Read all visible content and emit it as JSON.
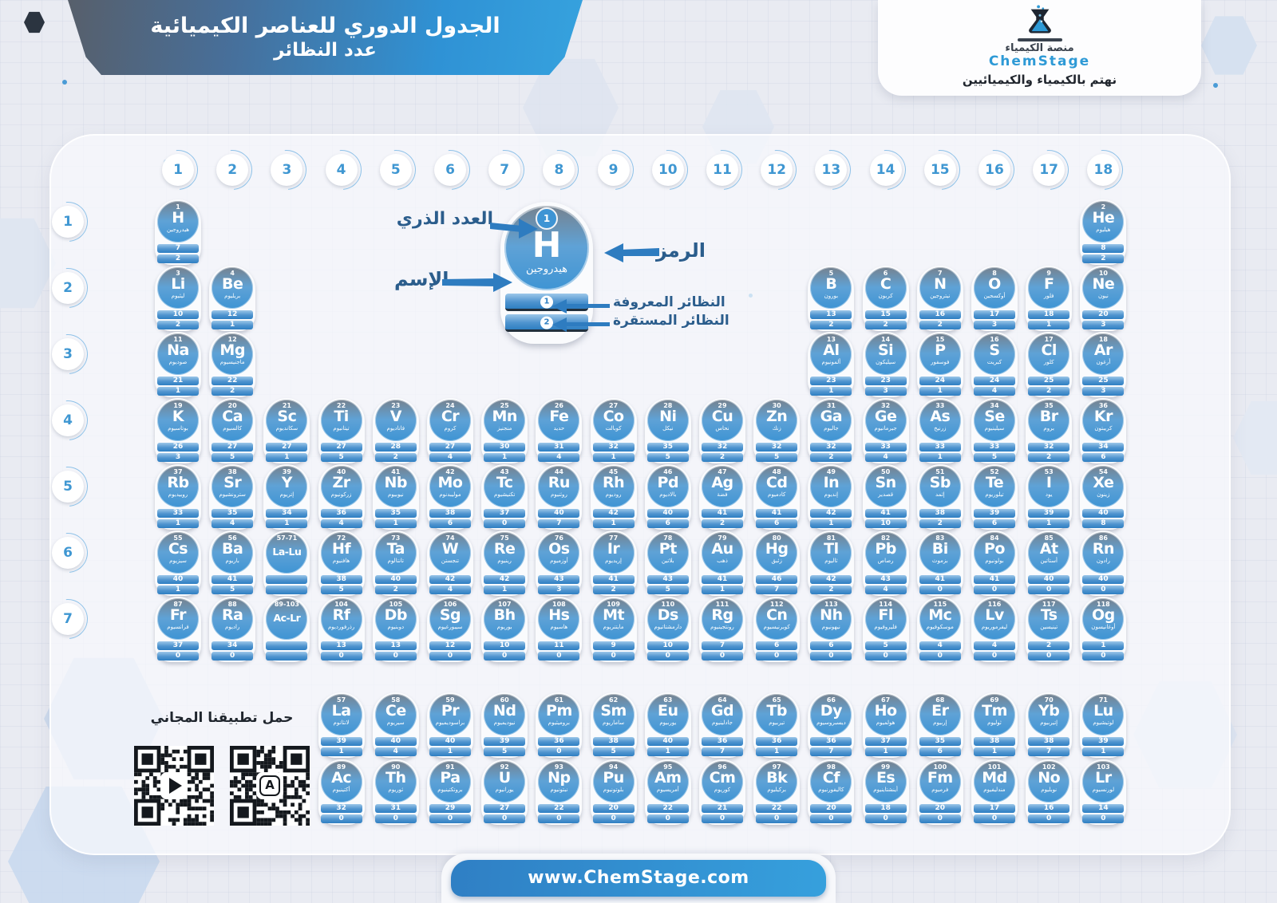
{
  "title": {
    "line1": "الجدول الدوري للعناصر الكيميائية",
    "line2": "عدد النظائر"
  },
  "brand": {
    "platform_ar": "منصة الكيمياء",
    "name": "ChemStage",
    "tagline": "نهتم بالكيمياء والكيميائيين"
  },
  "legend": {
    "atomic_number_label": "العدد الذري",
    "symbol_label": "الرمز",
    "name_label": "الإسم",
    "known_isotopes_label": "النظائر المعروفة",
    "stable_isotopes_label": "النظائر المستقرة",
    "example": {
      "number": "1",
      "symbol": "H",
      "name": "هيدروجين",
      "known_marker": "1",
      "stable_marker": "2"
    }
  },
  "app": {
    "download_label": "حمل تطبيقنا المجاني",
    "qr_codes": [
      "google-play-qr",
      "app-store-qr"
    ]
  },
  "footer": {
    "url": "www.ChemStage.com"
  },
  "colors": {
    "accent_blue": "#2e9ad6",
    "cell_blue": "#3e94d4",
    "band_blue": "#2e7fc2",
    "label_navy": "#2b5d8c",
    "banner_dark": "#575f6b",
    "background": "#e9ebf2"
  },
  "periodic": {
    "groups": [
      1,
      2,
      3,
      4,
      5,
      6,
      7,
      8,
      9,
      10,
      11,
      12,
      13,
      14,
      15,
      16,
      17,
      18
    ],
    "periods": [
      1,
      2,
      3,
      4,
      5,
      6,
      7
    ],
    "element_fields": [
      "group",
      "period",
      "number",
      "symbol",
      "name_ar",
      "known_isotopes",
      "stable_isotopes"
    ],
    "elements": [
      [
        1,
        1,
        "1",
        "H",
        "هيدروجين",
        7,
        2
      ],
      [
        18,
        1,
        "2",
        "He",
        "هيليوم",
        8,
        2
      ],
      [
        1,
        2,
        "3",
        "Li",
        "ليثيوم",
        10,
        2
      ],
      [
        2,
        2,
        "4",
        "Be",
        "بريليوم",
        12,
        1
      ],
      [
        13,
        2,
        "5",
        "B",
        "بورون",
        13,
        2
      ],
      [
        14,
        2,
        "6",
        "C",
        "كربون",
        15,
        2
      ],
      [
        15,
        2,
        "7",
        "N",
        "نيتروجين",
        16,
        2
      ],
      [
        16,
        2,
        "8",
        "O",
        "أوكسجين",
        17,
        3
      ],
      [
        17,
        2,
        "9",
        "F",
        "فلور",
        18,
        1
      ],
      [
        18,
        2,
        "10",
        "Ne",
        "نيون",
        20,
        3
      ],
      [
        1,
        3,
        "11",
        "Na",
        "صوديوم",
        21,
        1
      ],
      [
        2,
        3,
        "12",
        "Mg",
        "ماجنيسيوم",
        22,
        2
      ],
      [
        13,
        3,
        "13",
        "Al",
        "ألمونيوم",
        23,
        1
      ],
      [
        14,
        3,
        "14",
        "Si",
        "سيليكون",
        23,
        3
      ],
      [
        15,
        3,
        "15",
        "P",
        "فوسفور",
        24,
        1
      ],
      [
        16,
        3,
        "16",
        "S",
        "كبريت",
        24,
        4
      ],
      [
        17,
        3,
        "17",
        "Cl",
        "كلور",
        25,
        2
      ],
      [
        18,
        3,
        "18",
        "Ar",
        "أرغون",
        25,
        3
      ],
      [
        1,
        4,
        "19",
        "K",
        "بوتاسيوم",
        26,
        3
      ],
      [
        2,
        4,
        "20",
        "Ca",
        "كالسيوم",
        27,
        5
      ],
      [
        3,
        4,
        "21",
        "Sc",
        "سكانديوم",
        27,
        1
      ],
      [
        4,
        4,
        "22",
        "Ti",
        "تيتانيوم",
        27,
        5
      ],
      [
        5,
        4,
        "23",
        "V",
        "فاناديوم",
        28,
        2
      ],
      [
        6,
        4,
        "24",
        "Cr",
        "كروم",
        27,
        4
      ],
      [
        7,
        4,
        "25",
        "Mn",
        "منجنيز",
        30,
        1
      ],
      [
        8,
        4,
        "26",
        "Fe",
        "حديد",
        31,
        4
      ],
      [
        9,
        4,
        "27",
        "Co",
        "كوبالت",
        32,
        1
      ],
      [
        10,
        4,
        "28",
        "Ni",
        "نيكل",
        35,
        5
      ],
      [
        11,
        4,
        "29",
        "Cu",
        "نحاس",
        32,
        2
      ],
      [
        12,
        4,
        "30",
        "Zn",
        "زنك",
        32,
        5
      ],
      [
        13,
        4,
        "31",
        "Ga",
        "جاليوم",
        32,
        2
      ],
      [
        14,
        4,
        "32",
        "Ge",
        "جيرمانيوم",
        33,
        4
      ],
      [
        15,
        4,
        "33",
        "As",
        "زرنيخ",
        33,
        1
      ],
      [
        16,
        4,
        "34",
        "Se",
        "سيلينيوم",
        33,
        5
      ],
      [
        17,
        4,
        "35",
        "Br",
        "بروم",
        32,
        2
      ],
      [
        18,
        4,
        "36",
        "Kr",
        "كريبتون",
        34,
        6
      ],
      [
        1,
        5,
        "37",
        "Rb",
        "روبيديوم",
        33,
        1
      ],
      [
        2,
        5,
        "38",
        "Sr",
        "سترونشيوم",
        35,
        4
      ],
      [
        3,
        5,
        "39",
        "Y",
        "إتريوم",
        34,
        1
      ],
      [
        4,
        5,
        "40",
        "Zr",
        "زركونيوم",
        36,
        4
      ],
      [
        5,
        5,
        "41",
        "Nb",
        "نيوبيوم",
        35,
        1
      ],
      [
        6,
        5,
        "42",
        "Mo",
        "موليبدنوم",
        38,
        6
      ],
      [
        7,
        5,
        "43",
        "Tc",
        "تكنيشيوم",
        37,
        0
      ],
      [
        8,
        5,
        "44",
        "Ru",
        "روثنيوم",
        40,
        7
      ],
      [
        9,
        5,
        "45",
        "Rh",
        "روديوم",
        42,
        1
      ],
      [
        10,
        5,
        "46",
        "Pd",
        "بالاديوم",
        40,
        6
      ],
      [
        11,
        5,
        "47",
        "Ag",
        "فضة",
        41,
        2
      ],
      [
        12,
        5,
        "48",
        "Cd",
        "كادميوم",
        41,
        6
      ],
      [
        13,
        5,
        "49",
        "In",
        "إنديوم",
        42,
        1
      ],
      [
        14,
        5,
        "50",
        "Sn",
        "قصدير",
        41,
        10
      ],
      [
        15,
        5,
        "51",
        "Sb",
        "إثمد",
        38,
        2
      ],
      [
        16,
        5,
        "52",
        "Te",
        "تيلوريوم",
        39,
        6
      ],
      [
        17,
        5,
        "53",
        "I",
        "يود",
        39,
        1
      ],
      [
        18,
        5,
        "54",
        "Xe",
        "زينون",
        40,
        8
      ],
      [
        1,
        6,
        "55",
        "Cs",
        "سيزيوم",
        40,
        1
      ],
      [
        2,
        6,
        "56",
        "Ba",
        "باريوم",
        41,
        5
      ],
      [
        3,
        6,
        "57-71",
        "La-Lu",
        "",
        null,
        null
      ],
      [
        4,
        6,
        "72",
        "Hf",
        "هافنيوم",
        38,
        5
      ],
      [
        5,
        6,
        "73",
        "Ta",
        "تانتالوم",
        40,
        2
      ],
      [
        6,
        6,
        "74",
        "W",
        "تنجستن",
        42,
        4
      ],
      [
        7,
        6,
        "75",
        "Re",
        "رينيوم",
        42,
        1
      ],
      [
        8,
        6,
        "76",
        "Os",
        "أوزميوم",
        43,
        3
      ],
      [
        9,
        6,
        "77",
        "Ir",
        "إريديوم",
        41,
        2
      ],
      [
        10,
        6,
        "78",
        "Pt",
        "بلاتين",
        43,
        5
      ],
      [
        11,
        6,
        "79",
        "Au",
        "ذهب",
        41,
        1
      ],
      [
        12,
        6,
        "80",
        "Hg",
        "زئبق",
        46,
        7
      ],
      [
        13,
        6,
        "81",
        "Tl",
        "ثاليوم",
        42,
        2
      ],
      [
        14,
        6,
        "82",
        "Pb",
        "رصاص",
        43,
        4
      ],
      [
        15,
        6,
        "83",
        "Bi",
        "بزموث",
        41,
        0
      ],
      [
        16,
        6,
        "84",
        "Po",
        "بولونيوم",
        41,
        0
      ],
      [
        17,
        6,
        "85",
        "At",
        "أستاتين",
        40,
        0
      ],
      [
        18,
        6,
        "86",
        "Rn",
        "رادون",
        40,
        0
      ],
      [
        1,
        7,
        "87",
        "Fr",
        "فرانسيوم",
        37,
        0
      ],
      [
        2,
        7,
        "88",
        "Ra",
        "راديوم",
        34,
        0
      ],
      [
        3,
        7,
        "89-103",
        "Ac-Lr",
        "",
        null,
        null
      ],
      [
        4,
        7,
        "104",
        "Rf",
        "رذرفورديوم",
        13,
        0
      ],
      [
        5,
        7,
        "105",
        "Db",
        "دوبنيوم",
        13,
        0
      ],
      [
        6,
        7,
        "106",
        "Sg",
        "سيبورغيوم",
        12,
        0
      ],
      [
        7,
        7,
        "107",
        "Bh",
        "بوريوم",
        10,
        0
      ],
      [
        8,
        7,
        "108",
        "Hs",
        "هاسيوم",
        11,
        0
      ],
      [
        9,
        7,
        "109",
        "Mt",
        "مايتنريوم",
        9,
        0
      ],
      [
        10,
        7,
        "110",
        "Ds",
        "دارمشتاتيوم",
        10,
        0
      ],
      [
        11,
        7,
        "111",
        "Rg",
        "رونتجينيوم",
        7,
        0
      ],
      [
        12,
        7,
        "112",
        "Cn",
        "كوبرنيسيوم",
        6,
        0
      ],
      [
        13,
        7,
        "113",
        "Nh",
        "نيهونيوم",
        6,
        0
      ],
      [
        14,
        7,
        "114",
        "Fl",
        "فليروفيوم",
        5,
        0
      ],
      [
        15,
        7,
        "115",
        "Mc",
        "موسكوفيوم",
        4,
        0
      ],
      [
        16,
        7,
        "116",
        "Lv",
        "ليفرموريوم",
        4,
        0
      ],
      [
        17,
        7,
        "117",
        "Ts",
        "تينيسين",
        2,
        0
      ],
      [
        18,
        7,
        "118",
        "Og",
        "أوغانيسون",
        1,
        0
      ],
      [
        4,
        8,
        "57",
        "La",
        "لانثانوم",
        39,
        1
      ],
      [
        5,
        8,
        "58",
        "Ce",
        "سيريوم",
        40,
        4
      ],
      [
        6,
        8,
        "59",
        "Pr",
        "براسوديميوم",
        40,
        1
      ],
      [
        7,
        8,
        "60",
        "Nd",
        "نيوديميوم",
        39,
        5
      ],
      [
        8,
        8,
        "61",
        "Pm",
        "بروميثيوم",
        36,
        0
      ],
      [
        9,
        8,
        "62",
        "Sm",
        "ساماريوم",
        38,
        5
      ],
      [
        10,
        8,
        "63",
        "Eu",
        "يوربيوم",
        40,
        1
      ],
      [
        11,
        8,
        "64",
        "Gd",
        "جادلينيوم",
        36,
        7
      ],
      [
        12,
        8,
        "65",
        "Tb",
        "تيربيوم",
        36,
        1
      ],
      [
        13,
        8,
        "66",
        "Dy",
        "ديسبروسيوم",
        36,
        7
      ],
      [
        14,
        8,
        "67",
        "Ho",
        "هولميوم",
        37,
        1
      ],
      [
        15,
        8,
        "68",
        "Er",
        "إربيوم",
        35,
        6
      ],
      [
        16,
        8,
        "69",
        "Tm",
        "ثوليوم",
        38,
        1
      ],
      [
        17,
        8,
        "70",
        "Yb",
        "إتيربيوم",
        38,
        7
      ],
      [
        18,
        8,
        "71",
        "Lu",
        "لوتيشيوم",
        39,
        1
      ],
      [
        4,
        9,
        "89",
        "Ac",
        "أكتينيوم",
        32,
        0
      ],
      [
        5,
        9,
        "90",
        "Th",
        "ثوريوم",
        31,
        0
      ],
      [
        6,
        9,
        "91",
        "Pa",
        "بروتكتينيوم",
        29,
        0
      ],
      [
        7,
        9,
        "92",
        "U",
        "يورانيوم",
        27,
        0
      ],
      [
        8,
        9,
        "93",
        "Np",
        "نبتونيوم",
        22,
        0
      ],
      [
        9,
        9,
        "94",
        "Pu",
        "بلوتونيوم",
        20,
        0
      ],
      [
        10,
        9,
        "95",
        "Am",
        "أمريسيوم",
        22,
        0
      ],
      [
        11,
        9,
        "96",
        "Cm",
        "كوريوم",
        21,
        0
      ],
      [
        12,
        9,
        "97",
        "Bk",
        "بركيليوم",
        22,
        0
      ],
      [
        13,
        9,
        "98",
        "Cf",
        "كاليفورنيوم",
        20,
        0
      ],
      [
        14,
        9,
        "99",
        "Es",
        "أينشتاينيوم",
        18,
        0
      ],
      [
        15,
        9,
        "100",
        "Fm",
        "فرميوم",
        20,
        0
      ],
      [
        16,
        9,
        "101",
        "Md",
        "مندليفيوم",
        17,
        0
      ],
      [
        17,
        9,
        "102",
        "No",
        "نوبليوم",
        16,
        0
      ],
      [
        18,
        9,
        "103",
        "Lr",
        "لورنسيوم",
        14,
        0
      ]
    ]
  }
}
